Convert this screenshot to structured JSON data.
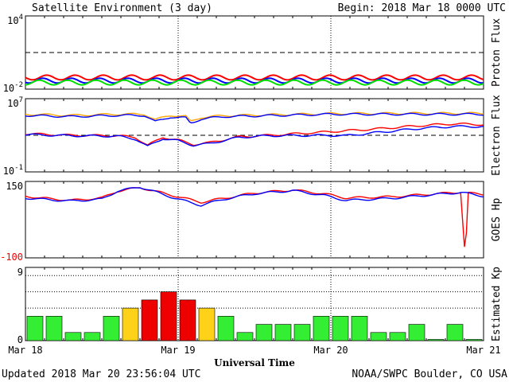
{
  "header": {
    "title": "Satellite Environment (3 day)",
    "begin": "Begin:  2018 Mar 18 0000 UTC"
  },
  "footer": {
    "updated": "Updated 2018 Mar 20 23:56:04 UTC",
    "credit": "NOAA/SWPC Boulder, CO USA",
    "xlabel": "Universal Time"
  },
  "colors": {
    "red": "#ff0000",
    "blue": "#0000ff",
    "green": "#00dd00",
    "orange": "#ffa500",
    "kp_green": "#33ee33",
    "kp_yellow": "#ffd21a",
    "kp_red": "#ee0000"
  },
  "chart_data": [
    {
      "name": "proton_flux",
      "type": "line",
      "ylabel": "Proton Flux",
      "scale": "log",
      "ylim": [
        0.01,
        10000
      ],
      "tick_labels": {
        "top": "10",
        "top_exp": "4",
        "bottom": "10",
        "bottom_exp": "-2"
      },
      "threshold": 10,
      "x_range_days": [
        0,
        3
      ],
      "series": [
        {
          "color": "red",
          "points": [
            [
              0,
              0.09
            ],
            [
              1.5,
              0.09
            ],
            [
              3,
              0.09
            ]
          ]
        },
        {
          "color": "blue",
          "points": [
            [
              0,
              0.05
            ],
            [
              1.5,
              0.05
            ],
            [
              3,
              0.05
            ]
          ]
        },
        {
          "color": "green",
          "points": [
            [
              0,
              0.035
            ],
            [
              1.5,
              0.035
            ],
            [
              3,
              0.035
            ]
          ]
        }
      ]
    },
    {
      "name": "electron_flux",
      "type": "line",
      "ylabel": "Electron Flux",
      "scale": "log",
      "ylim": [
        0.1,
        10000000
      ],
      "tick_labels": {
        "top": "10",
        "top_exp": "7",
        "bottom": "10",
        "bottom_exp": "-1"
      },
      "threshold": 1000,
      "x_range_days": [
        0,
        3
      ],
      "series": [
        {
          "color": "orange",
          "points": [
            [
              0,
              200000
            ],
            [
              0.3,
              150000
            ],
            [
              0.6,
              200000
            ],
            [
              0.78,
              200000
            ],
            [
              0.85,
              50000
            ],
            [
              0.95,
              150000
            ],
            [
              1.05,
              120000
            ],
            [
              1.08,
              30000
            ],
            [
              1.15,
              90000
            ],
            [
              1.3,
              140000
            ],
            [
              1.5,
              160000
            ],
            [
              2.0,
              230000
            ],
            [
              2.5,
              250000
            ],
            [
              3.0,
              250000
            ]
          ]
        },
        {
          "color": "blue",
          "points": [
            [
              0,
              150000
            ],
            [
              0.3,
              110000
            ],
            [
              0.6,
              150000
            ],
            [
              0.78,
              150000
            ],
            [
              0.85,
              30000
            ],
            [
              0.95,
              100000
            ],
            [
              1.05,
              80000
            ],
            [
              1.08,
              20000
            ],
            [
              1.15,
              60000
            ],
            [
              1.3,
              110000
            ],
            [
              1.5,
              130000
            ],
            [
              2.0,
              200000
            ],
            [
              2.5,
              200000
            ],
            [
              3.0,
              200000
            ]
          ]
        },
        {
          "color": "red",
          "points": [
            [
              0,
              1500
            ],
            [
              0.3,
              1000
            ],
            [
              0.6,
              900
            ],
            [
              0.72,
              600
            ],
            [
              0.8,
              80
            ],
            [
              0.9,
              600
            ],
            [
              1.0,
              300
            ],
            [
              1.1,
              100
            ],
            [
              1.2,
              150
            ],
            [
              1.4,
              700
            ],
            [
              1.6,
              1000
            ],
            [
              2.0,
              2500
            ],
            [
              2.3,
              5000
            ],
            [
              2.6,
              12000
            ],
            [
              2.8,
              18000
            ],
            [
              3.0,
              15000
            ]
          ]
        },
        {
          "color": "blue",
          "points": [
            [
              0,
              1200
            ],
            [
              0.3,
              900
            ],
            [
              0.6,
              800
            ],
            [
              0.72,
              400
            ],
            [
              0.8,
              60
            ],
            [
              0.9,
              450
            ],
            [
              1.0,
              250
            ],
            [
              1.1,
              80
            ],
            [
              1.2,
              120
            ],
            [
              1.4,
              600
            ],
            [
              1.6,
              900
            ],
            [
              2.0,
              1000
            ],
            [
              2.1,
              900
            ],
            [
              2.3,
              2000
            ],
            [
              2.6,
              6000
            ],
            [
              2.8,
              9000
            ],
            [
              3.0,
              9000
            ]
          ]
        }
      ]
    },
    {
      "name": "goes_hp",
      "type": "line",
      "ylabel": "GOES Hp",
      "scale": "linear",
      "ylim": [
        -100,
        150
      ],
      "tick_labels": {
        "top": "150",
        "bottom": "-100"
      },
      "x_range_days": [
        0,
        3
      ],
      "series": [
        {
          "color": "red",
          "points": [
            [
              0,
              102
            ],
            [
              0.1,
              96
            ],
            [
              0.3,
              88
            ],
            [
              0.5,
              96
            ],
            [
              0.6,
              118
            ],
            [
              0.75,
              130
            ],
            [
              0.9,
              112
            ],
            [
              1.0,
              100
            ],
            [
              1.15,
              82
            ],
            [
              1.3,
              95
            ],
            [
              1.5,
              112
            ],
            [
              1.75,
              122
            ],
            [
              1.95,
              110
            ],
            [
              2.1,
              96
            ],
            [
              2.4,
              100
            ],
            [
              2.7,
              110
            ],
            [
              2.85,
              115
            ],
            [
              2.88,
              -100
            ],
            [
              2.9,
              112
            ],
            [
              3.0,
              108
            ]
          ]
        },
        {
          "color": "blue",
          "points": [
            [
              0,
              96
            ],
            [
              0.1,
              92
            ],
            [
              0.3,
              86
            ],
            [
              0.5,
              92
            ],
            [
              0.6,
              118
            ],
            [
              0.75,
              132
            ],
            [
              0.9,
              108
            ],
            [
              1.0,
              92
            ],
            [
              1.15,
              72
            ],
            [
              1.3,
              92
            ],
            [
              1.5,
              110
            ],
            [
              1.75,
              120
            ],
            [
              1.95,
              105
            ],
            [
              2.1,
              88
            ],
            [
              2.4,
              95
            ],
            [
              2.7,
              108
            ],
            [
              2.85,
              114
            ],
            [
              3.0,
              102
            ]
          ]
        }
      ]
    },
    {
      "name": "estimated_kp",
      "type": "bar",
      "ylabel": "Estimated Kp",
      "ylim": [
        0,
        9
      ],
      "tick_labels": {
        "top": "9",
        "bottom": "0"
      },
      "dotted_levels": [
        4,
        6,
        8
      ],
      "values": [
        3,
        3,
        1,
        1,
        3,
        4,
        5,
        6,
        5,
        4,
        3,
        1,
        2,
        2,
        2,
        3,
        3,
        3,
        1,
        1,
        2,
        0,
        2,
        0
      ],
      "x_ticks": [
        "Mar 18",
        "Mar 19",
        "Mar 20",
        "Mar 21"
      ]
    }
  ]
}
